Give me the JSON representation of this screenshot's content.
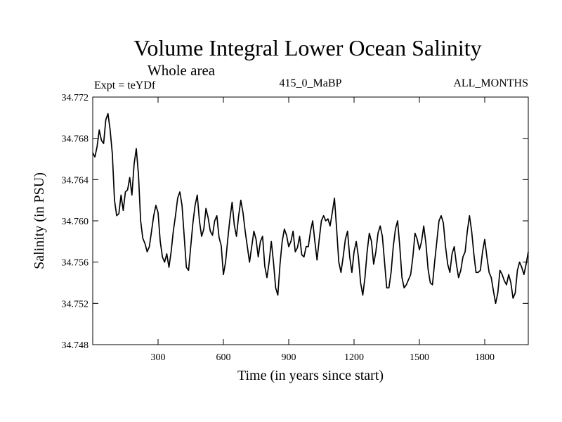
{
  "chart_data": {
    "type": "line",
    "title": "Volume Integral Lower Ocean Salinity",
    "subtitle": "Whole area",
    "expt_label": "Expt = teYDf",
    "run_label": "415_0_MaBP",
    "months_label": "ALL_MONTHS",
    "xlabel": "Time (in years since start)",
    "ylabel": "Salinity (in PSU)",
    "xlim": [
      0,
      2000
    ],
    "ylim": [
      34.748,
      34.772
    ],
    "xticks": [
      300,
      600,
      900,
      1200,
      1500,
      1800
    ],
    "yticks": [
      34.748,
      34.752,
      34.756,
      34.76,
      34.764,
      34.768,
      34.772
    ],
    "ytick_labels": [
      "34.748",
      "34.752",
      "34.756",
      "34.760",
      "34.764",
      "34.768",
      "34.772"
    ],
    "grid": false,
    "series": [
      {
        "name": "salinity",
        "x": [
          0,
          10,
          20,
          30,
          40,
          50,
          60,
          70,
          80,
          90,
          100,
          110,
          120,
          130,
          140,
          150,
          160,
          170,
          180,
          190,
          200,
          210,
          220,
          230,
          240,
          250,
          260,
          270,
          280,
          290,
          300,
          310,
          320,
          330,
          340,
          350,
          360,
          370,
          380,
          390,
          400,
          410,
          420,
          430,
          440,
          450,
          460,
          470,
          480,
          490,
          500,
          510,
          520,
          530,
          540,
          550,
          560,
          570,
          580,
          590,
          600,
          610,
          620,
          630,
          640,
          650,
          660,
          670,
          680,
          690,
          700,
          710,
          720,
          730,
          740,
          750,
          760,
          770,
          780,
          790,
          800,
          810,
          820,
          830,
          840,
          850,
          860,
          870,
          880,
          890,
          900,
          910,
          920,
          930,
          940,
          950,
          960,
          970,
          980,
          990,
          1000,
          1010,
          1020,
          1030,
          1040,
          1050,
          1060,
          1070,
          1080,
          1090,
          1100,
          1110,
          1120,
          1130,
          1140,
          1150,
          1160,
          1170,
          1180,
          1190,
          1200,
          1210,
          1220,
          1230,
          1240,
          1250,
          1260,
          1270,
          1280,
          1290,
          1300,
          1310,
          1320,
          1330,
          1340,
          1350,
          1360,
          1370,
          1380,
          1390,
          1400,
          1410,
          1420,
          1430,
          1440,
          1450,
          1460,
          1470,
          1480,
          1490,
          1500,
          1510,
          1520,
          1530,
          1540,
          1550,
          1560,
          1570,
          1580,
          1590,
          1600,
          1610,
          1620,
          1630,
          1640,
          1650,
          1660,
          1670,
          1680,
          1690,
          1700,
          1710,
          1720,
          1730,
          1740,
          1750,
          1760,
          1770,
          1780,
          1790,
          1800,
          1810,
          1820,
          1830,
          1840,
          1850,
          1860,
          1870,
          1880,
          1890,
          1900,
          1910,
          1920,
          1930,
          1940,
          1950,
          1960,
          1970,
          1980,
          1990,
          2000
        ],
        "y": [
          34.7666,
          34.7662,
          34.7672,
          34.7688,
          34.7678,
          34.7675,
          34.7698,
          34.7704,
          34.7688,
          34.7665,
          34.762,
          34.7605,
          34.7607,
          34.7625,
          34.761,
          34.7628,
          34.763,
          34.7642,
          34.7625,
          34.7655,
          34.767,
          34.7645,
          34.76,
          34.7583,
          34.7578,
          34.757,
          34.7575,
          34.759,
          34.7605,
          34.7615,
          34.7608,
          34.758,
          34.7565,
          34.756,
          34.7568,
          34.7555,
          34.757,
          34.759,
          34.7605,
          34.7622,
          34.7628,
          34.7615,
          34.7585,
          34.7555,
          34.7552,
          34.7575,
          34.7598,
          34.7615,
          34.7625,
          34.76,
          34.7585,
          34.7592,
          34.7612,
          34.7603,
          34.759,
          34.7586,
          34.76,
          34.7605,
          34.7584,
          34.7576,
          34.7548,
          34.756,
          34.7582,
          34.7602,
          34.7618,
          34.7596,
          34.7585,
          34.7605,
          34.762,
          34.7608,
          34.759,
          34.7575,
          34.756,
          34.7575,
          34.759,
          34.7582,
          34.7565,
          34.758,
          34.7585,
          34.7556,
          34.7545,
          34.756,
          34.758,
          34.756,
          34.7535,
          34.7528,
          34.7558,
          34.758,
          34.7592,
          34.7586,
          34.7575,
          34.758,
          34.759,
          34.757,
          34.7574,
          34.7585,
          34.7567,
          34.7565,
          34.7575,
          34.7575,
          34.759,
          34.76,
          34.758,
          34.7562,
          34.7582,
          34.76,
          34.7605,
          34.76,
          34.7602,
          34.7595,
          34.7608,
          34.7622,
          34.7592,
          34.756,
          34.755,
          34.7565,
          34.7582,
          34.759,
          34.7565,
          34.755,
          34.757,
          34.758,
          34.7565,
          34.754,
          34.7528,
          34.7545,
          34.757,
          34.7588,
          34.758,
          34.7558,
          34.757,
          34.7588,
          34.7595,
          34.7585,
          34.756,
          34.7535,
          34.7535,
          34.755,
          34.7575,
          34.7592,
          34.76,
          34.7575,
          34.7545,
          34.7535,
          34.7538,
          34.7543,
          34.7548,
          34.7565,
          34.7588,
          34.7582,
          34.7572,
          34.758,
          34.7595,
          34.7578,
          34.7553,
          34.754,
          34.7538,
          34.756,
          34.758,
          34.76,
          34.7605,
          34.7598,
          34.7575,
          34.7558,
          34.755,
          34.7568,
          34.7575,
          34.7558,
          34.7545,
          34.7552,
          34.7565,
          34.757,
          34.759,
          34.7605,
          34.759,
          34.7568,
          34.755,
          34.755,
          34.7552,
          34.757,
          34.7582,
          34.7565,
          34.755,
          34.7545,
          34.7532,
          34.752,
          34.753,
          34.7552,
          34.7548,
          34.7542,
          34.7538,
          34.7548,
          34.754,
          34.7525,
          34.753,
          34.7552,
          34.756,
          34.7555,
          34.7548,
          34.7558,
          34.757
        ]
      }
    ]
  }
}
